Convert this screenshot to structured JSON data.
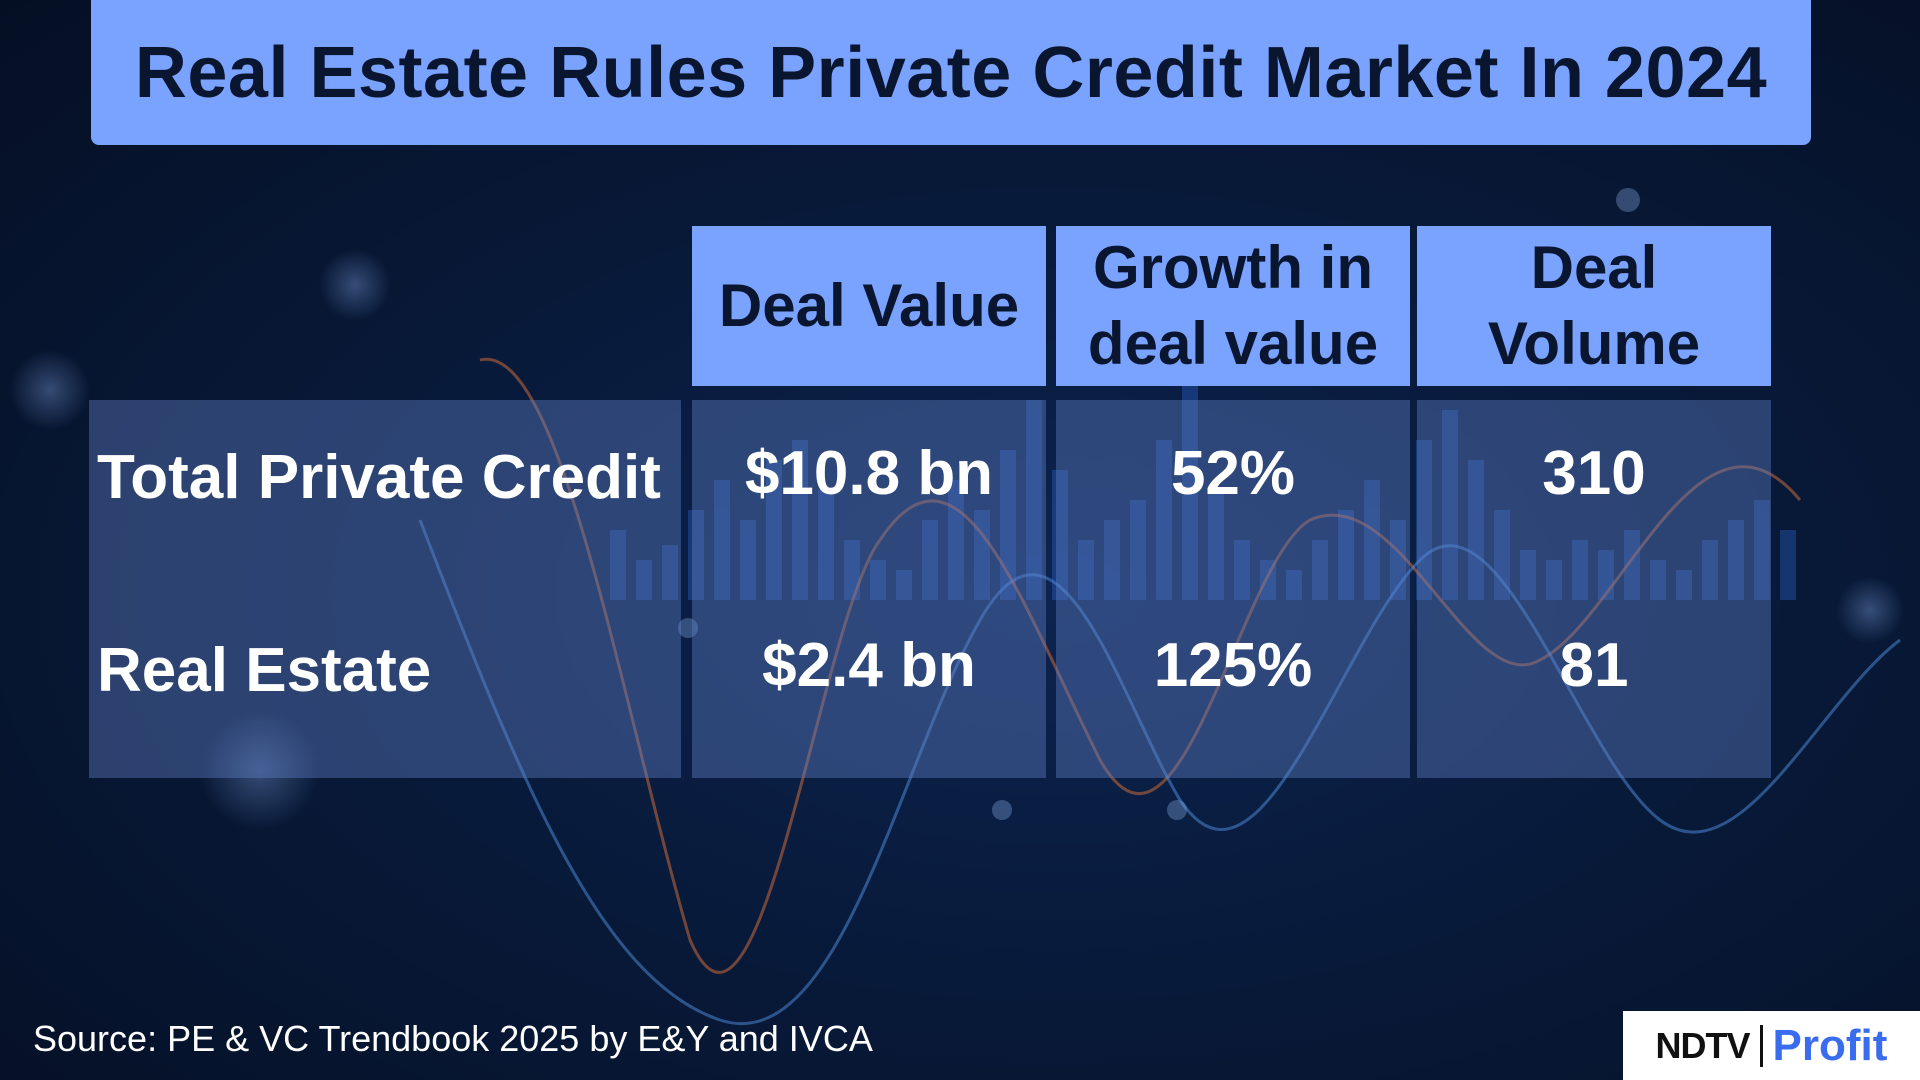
{
  "chart_data": {
    "type": "table",
    "title": "Real Estate Rules Private Credit Market In 2024",
    "columns": [
      "Deal Value",
      "Growth in deal value",
      "Deal Volume"
    ],
    "rows": [
      {
        "label": "Total Private Credit",
        "values": [
          "$10.8 bn",
          "52%",
          "310"
        ]
      },
      {
        "label": "Real Estate",
        "values": [
          "$2.4 bn",
          "125%",
          "81"
        ]
      }
    ]
  },
  "header": {
    "col1": [
      "Deal Value"
    ],
    "col2": [
      "Growth in",
      "deal value"
    ],
    "col3": [
      "Deal",
      "Volume"
    ]
  },
  "source": "Source: PE & VC Trendbook 2025 by E&Y and IVCA",
  "logo": {
    "brand": "NDTV",
    "product": "Profit"
  },
  "colors": {
    "header_bg": "#7aa3ff",
    "row_band": "#607ec4",
    "text_dark": "#0a1530",
    "logo_accent": "#3a6cf0"
  }
}
